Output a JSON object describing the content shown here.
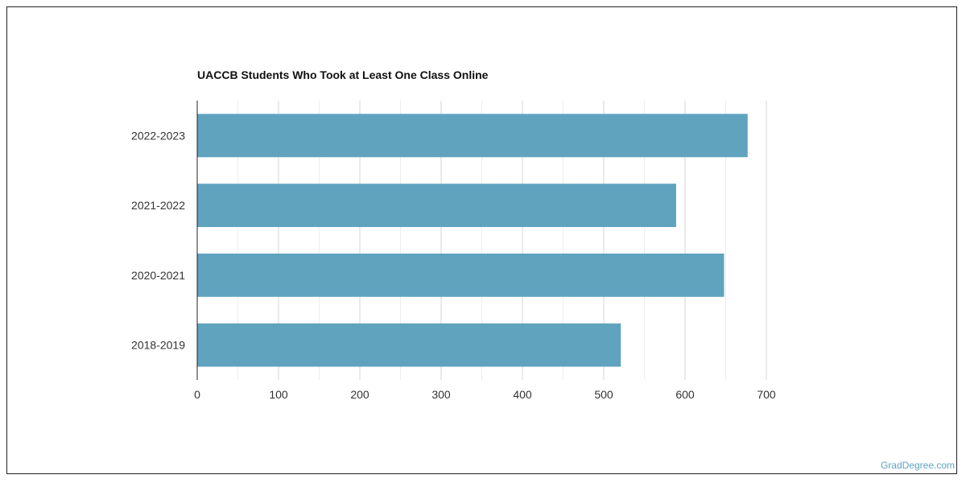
{
  "chart_data": {
    "type": "bar",
    "orientation": "horizontal",
    "title": "UACCB Students Who Took at Least One Class Online",
    "xlabel": "",
    "ylabel": "",
    "categories": [
      "2022-2023",
      "2021-2022",
      "2020-2021",
      "2018-2019"
    ],
    "values": [
      677,
      589,
      648,
      521
    ],
    "xlim": [
      0,
      700
    ],
    "xticks": [
      "0",
      "100",
      "200",
      "300",
      "400",
      "500",
      "600",
      "700"
    ],
    "grid": true,
    "bar_color": "#5fa3bf"
  },
  "credit": "GradDegree.com"
}
